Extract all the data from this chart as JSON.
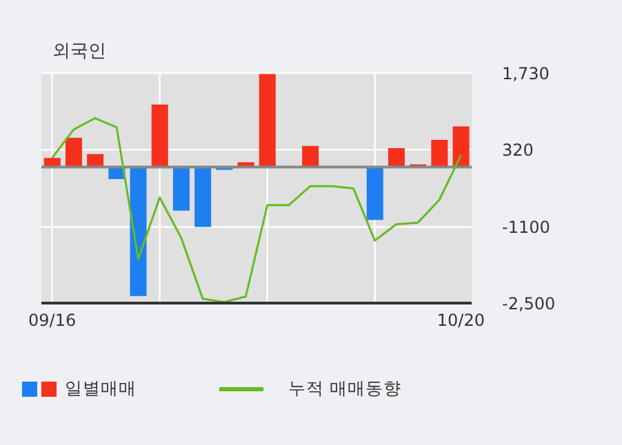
{
  "chart_data": {
    "type": "bar",
    "title": "외국인",
    "categories": [
      "09/16",
      null,
      null,
      null,
      null,
      null,
      null,
      null,
      null,
      null,
      null,
      null,
      null,
      null,
      null,
      null,
      null,
      null,
      null,
      "10/20"
    ],
    "series": [
      {
        "name": "일별매매",
        "values": [
          170,
          540,
          240,
          -220,
          -2370,
          1150,
          -800,
          -1100,
          -50,
          90,
          1710,
          null,
          390,
          null,
          null,
          -970,
          350,
          50,
          500,
          750
        ],
        "colors": [
          "#f5301c",
          "#f5301c",
          "#f5301c",
          "#1d7ff0",
          "#1d7ff0",
          "#f5301c",
          "#1d7ff0",
          "#1d7ff0",
          "#1d7ff0",
          "#f5301c",
          "#f5301c",
          "#f5301c",
          "#f5301c",
          "#f5301c",
          "#f5301c",
          "#1d7ff0",
          "#f5301c",
          "#f5301c",
          "#f5301c",
          "#f5301c"
        ]
      },
      {
        "name": "누적 매매동향",
        "type": "line",
        "color": "#66bb22",
        "values": [
          170,
          690,
          900,
          730,
          -1690,
          -560,
          -1300,
          -2420,
          -2480,
          -2380,
          -700,
          -700,
          -350,
          -350,
          -390,
          -1350,
          -1050,
          -1020,
          -600,
          220
        ]
      }
    ],
    "ylim": [
      -2500,
      1730
    ],
    "yticks": [
      {
        "value": 1730,
        "label": "1,730"
      },
      320,
      {
        "value": -1100,
        "label": "-1100"
      },
      {
        "value": -2500,
        "label": "-2,500"
      }
    ],
    "ref_lines": [
      {
        "axis": "y",
        "value": 0,
        "color": "#888888"
      }
    ],
    "grid": true,
    "legend": "bottom",
    "marker": "none",
    "line_style": "solid"
  }
}
